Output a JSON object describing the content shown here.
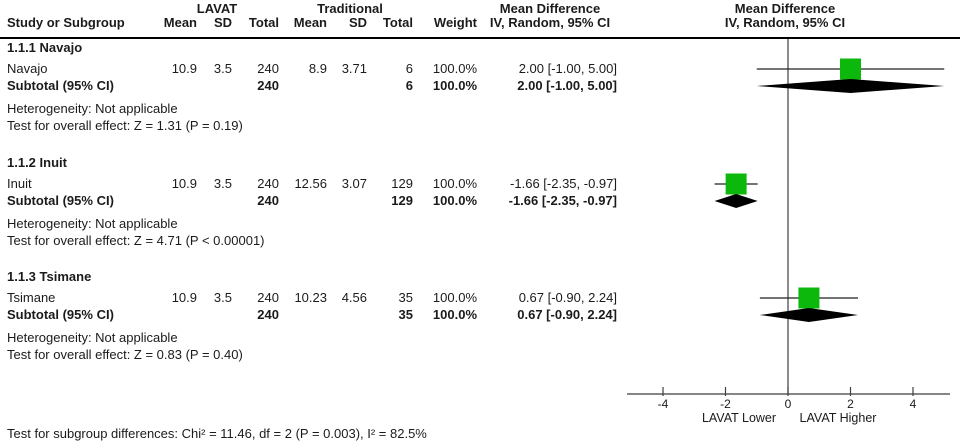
{
  "title_header": {
    "study_col": "Study or Subgroup",
    "group1": "LAVAT",
    "group2": "Traditional",
    "columns": [
      "Mean",
      "SD",
      "Total",
      "Mean",
      "SD",
      "Total",
      "Weight"
    ],
    "effect_col_title": "Mean Difference",
    "effect_col_sub": "IV, Random, 95% CI",
    "plot_col_title": "Mean Difference",
    "plot_col_sub": "IV, Random, 95% CI"
  },
  "chart_data": {
    "type": "forest",
    "effect_measure": "Mean Difference",
    "model": "IV, Random, 95% CI",
    "axis": {
      "ticks": [
        -4,
        -2,
        0,
        2,
        4
      ],
      "min": -5.2,
      "max": 5.2,
      "left_label": "LAVAT Lower",
      "right_label": "LAVAT Higher"
    },
    "subgroups": [
      {
        "label": "1.1.1 Navajo",
        "studies": [
          {
            "name": "Navajo",
            "mean1": "10.9",
            "sd1": "3.5",
            "total1": "240",
            "mean2": "8.9",
            "sd2": "3.71",
            "total2": "6",
            "weight": "100.0%",
            "ci_label": "2.00 [-1.00, 5.00]",
            "est": 2.0,
            "lo": -1.0,
            "hi": 5.0
          }
        ],
        "subtotal": {
          "name": "Subtotal (95% CI)",
          "total1": "240",
          "total2": "6",
          "weight": "100.0%",
          "ci_label": "2.00 [-1.00, 5.00]",
          "est": 2.0,
          "lo": -1.0,
          "hi": 5.0
        },
        "heterogeneity": "Heterogeneity: Not applicable",
        "overall_effect": "Test for overall effect: Z = 1.31 (P = 0.19)"
      },
      {
        "label": "1.1.2 Inuit",
        "studies": [
          {
            "name": "Inuit",
            "mean1": "10.9",
            "sd1": "3.5",
            "total1": "240",
            "mean2": "12.56",
            "sd2": "3.07",
            "total2": "129",
            "weight": "100.0%",
            "ci_label": "-1.66 [-2.35, -0.97]",
            "est": -1.66,
            "lo": -2.35,
            "hi": -0.97
          }
        ],
        "subtotal": {
          "name": "Subtotal (95% CI)",
          "total1": "240",
          "total2": "129",
          "weight": "100.0%",
          "ci_label": "-1.66 [-2.35, -0.97]",
          "est": -1.66,
          "lo": -2.35,
          "hi": -0.97
        },
        "heterogeneity": "Heterogeneity: Not applicable",
        "overall_effect": "Test for overall effect: Z = 4.71 (P < 0.00001)"
      },
      {
        "label": "1.1.3 Tsimane",
        "studies": [
          {
            "name": "Tsimane",
            "mean1": "10.9",
            "sd1": "3.5",
            "total1": "240",
            "mean2": "10.23",
            "sd2": "4.56",
            "total2": "35",
            "weight": "100.0%",
            "ci_label": "0.67 [-0.90, 2.24]",
            "est": 0.67,
            "lo": -0.9,
            "hi": 2.24
          }
        ],
        "subtotal": {
          "name": "Subtotal (95% CI)",
          "total1": "240",
          "total2": "35",
          "weight": "100.0%",
          "ci_label": "0.67 [-0.90, 2.24]",
          "est": 0.67,
          "lo": -0.9,
          "hi": 2.24
        },
        "heterogeneity": "Heterogeneity: Not applicable",
        "overall_effect": "Test for overall effect: Z = 0.83 (P = 0.40)"
      }
    ],
    "footer": "Test for subgroup differences: Chi² = 11.46, df = 2 (P = 0.003), I² = 82.5%",
    "colors": {
      "square": "#0cb80c",
      "diamond": "#000000",
      "line": "#222222",
      "axis": "#3f3f3f",
      "text": "#1b1b1b"
    }
  }
}
